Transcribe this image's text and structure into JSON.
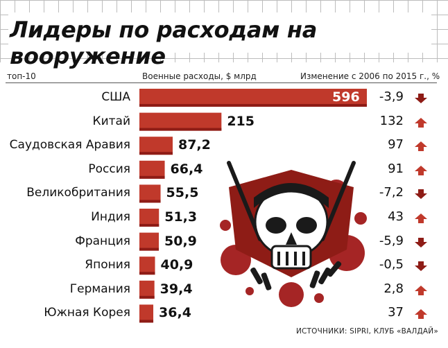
{
  "title": "Лидеры по расходам на вооружение",
  "headers": {
    "top": "топ-10",
    "spending": "Военные расходы, $ млрд",
    "change": "Изменение с 2006 по 2015 г., %"
  },
  "source": "ИСТОЧНИКИ: SIPRI, КЛУБ «ВАЛДАЙ»",
  "colors": {
    "bar": "#c0392b",
    "bar_dark": "#8e1c16",
    "up": "#c0392b",
    "down": "#8e1c16"
  },
  "chart_data": {
    "type": "bar",
    "title": "Лидеры по расходам на вооружение",
    "xlabel": "Военные расходы, $ млрд",
    "ylabel": "",
    "categories": [
      "США",
      "Китай",
      "Саудовская Аравия",
      "Россия",
      "Великобритания",
      "Индия",
      "Франция",
      "Япония",
      "Германия",
      "Южная Корея"
    ],
    "values": [
      596,
      215,
      87.2,
      66.4,
      55.5,
      51.3,
      50.9,
      40.9,
      39.4,
      36.4
    ],
    "value_labels": [
      "596",
      "215",
      "87,2",
      "66,4",
      "55,5",
      "51,3",
      "50,9",
      "40,9",
      "39,4",
      "36,4"
    ],
    "change_labels": [
      "-3,9",
      "132",
      "97",
      "91",
      "-7,2",
      "43",
      "-5,9",
      "-0,5",
      "2,8",
      "37"
    ],
    "change_values": [
      -3.9,
      132,
      97,
      91,
      -7.2,
      43,
      -5.9,
      -0.5,
      2.8,
      37
    ],
    "change_direction": [
      "down",
      "up",
      "up",
      "up",
      "down",
      "up",
      "down",
      "down",
      "up",
      "up"
    ]
  }
}
